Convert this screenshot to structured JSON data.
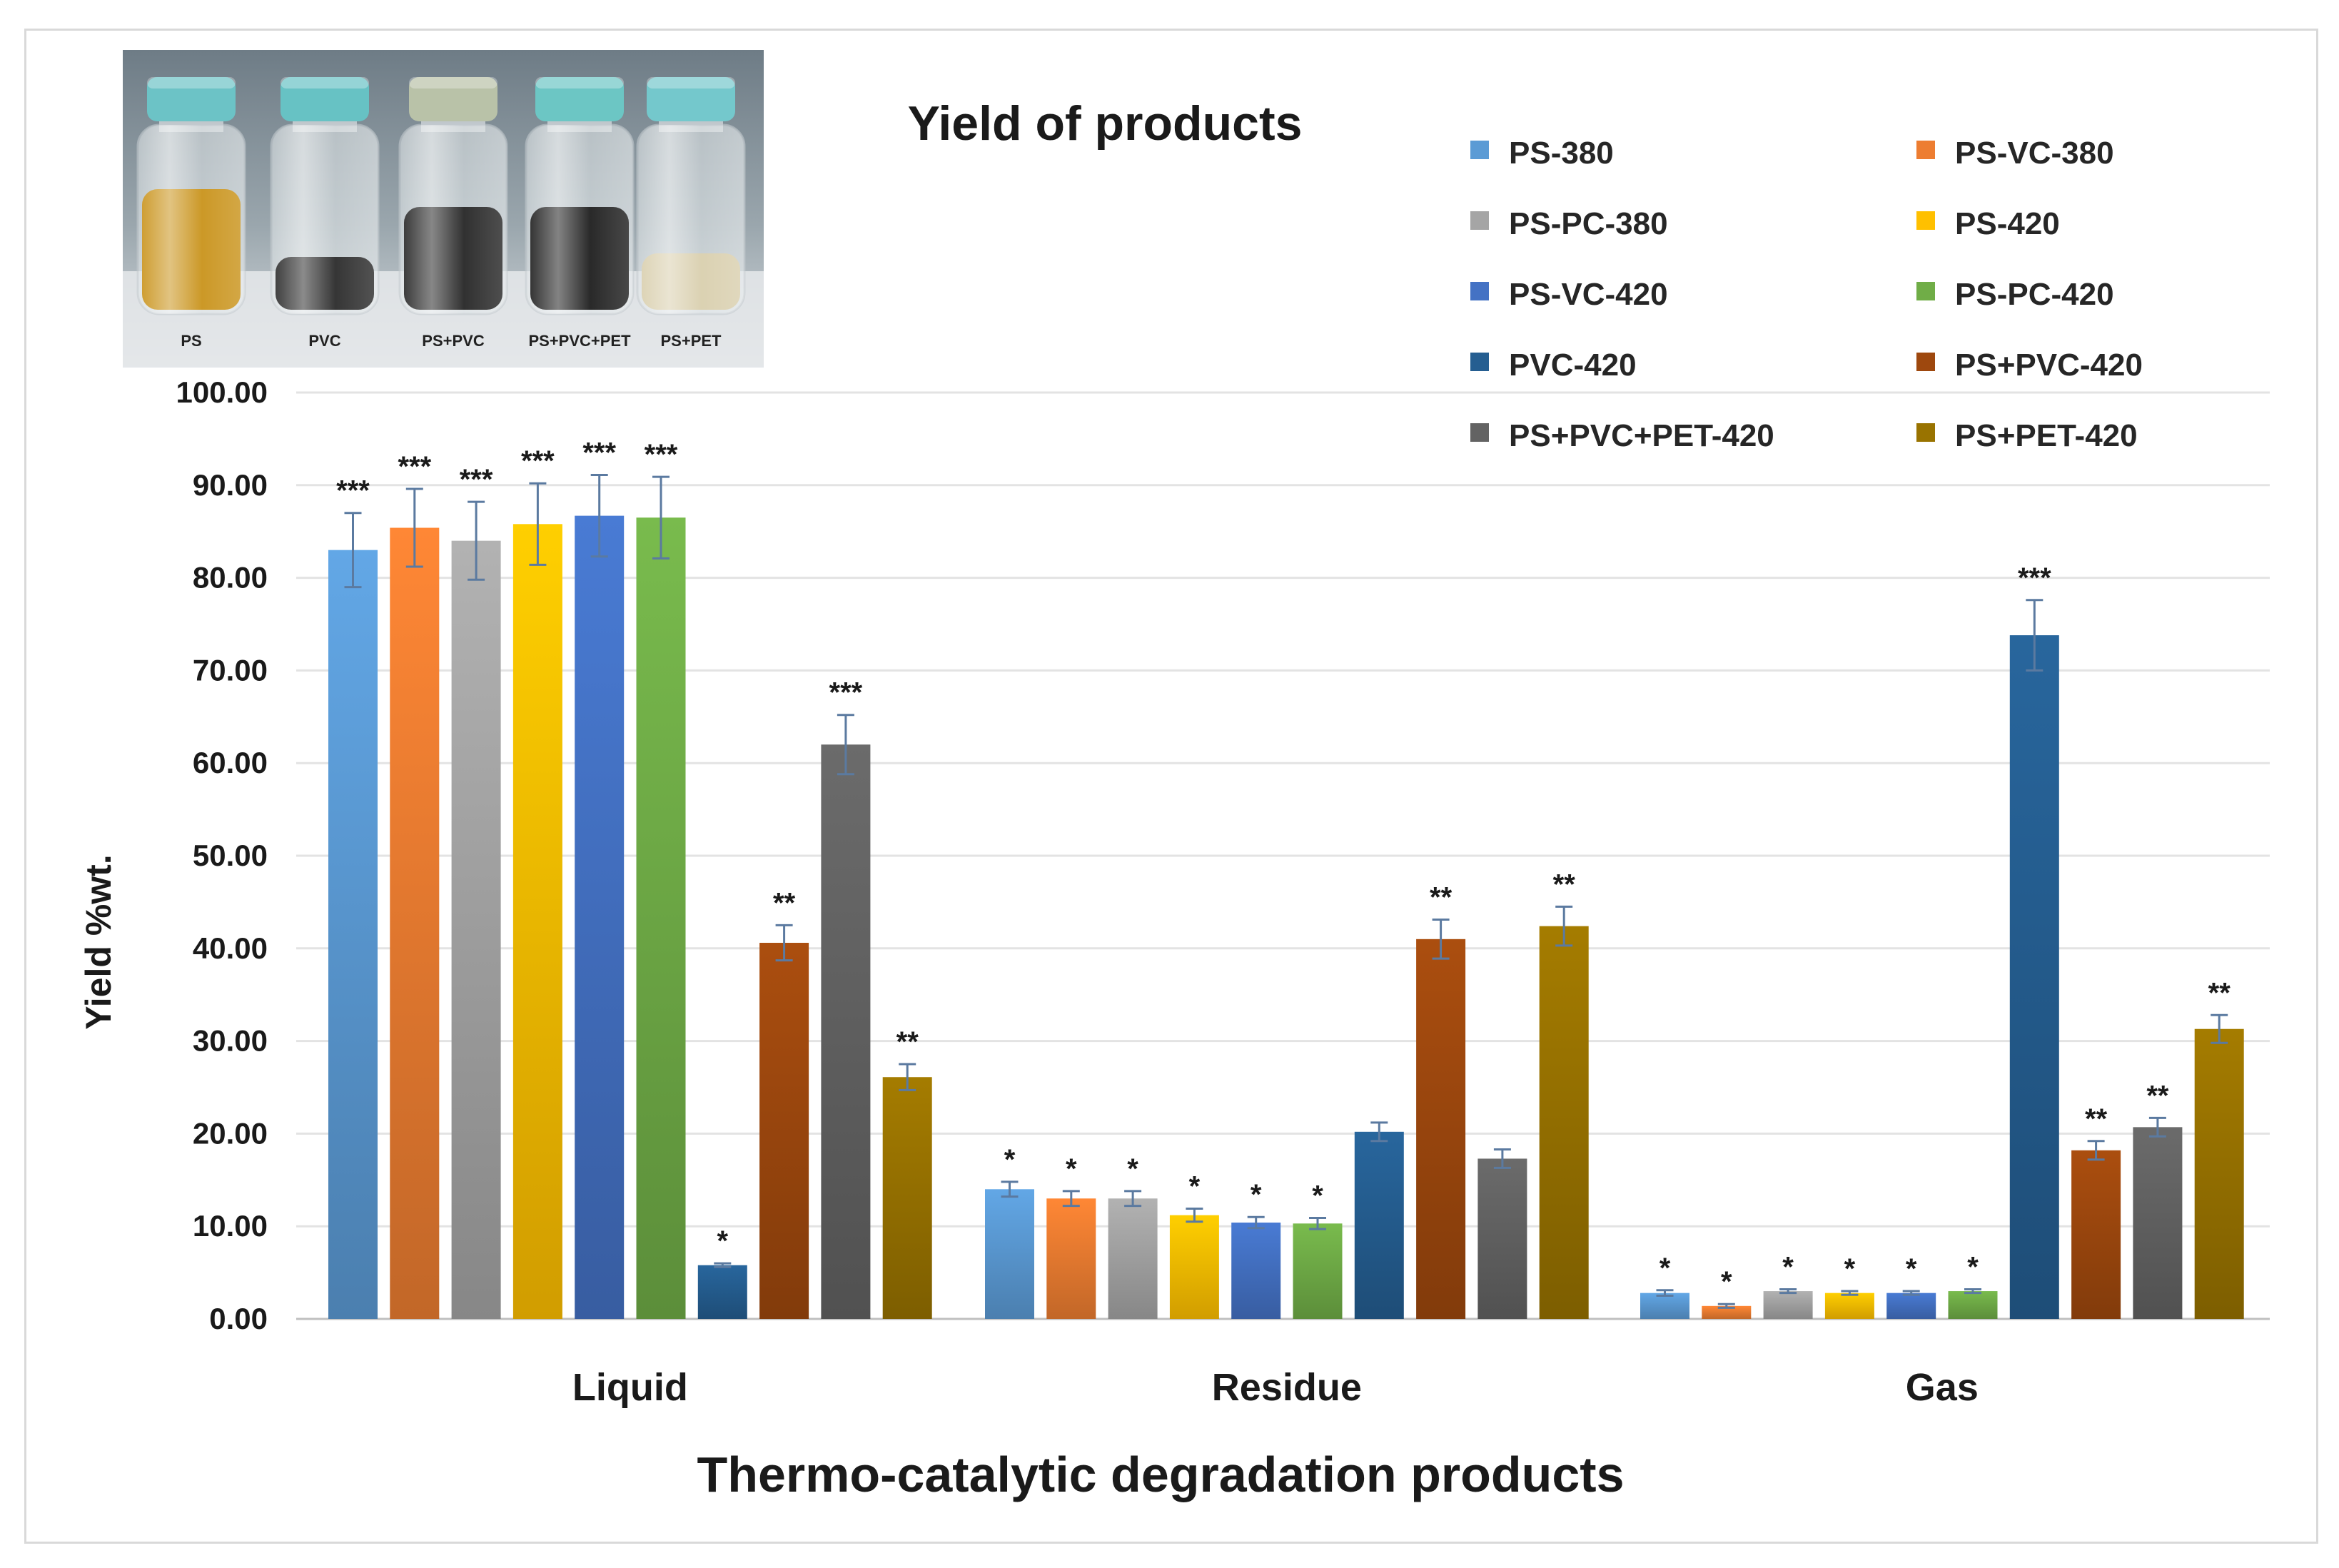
{
  "chart_data": {
    "type": "bar",
    "title": "Yield of products",
    "xlabel": "Thermo-catalytic degradation products",
    "ylabel": "Yield  %wt.",
    "ylim": [
      0,
      100
    ],
    "yticks": [
      "0.00",
      "10.00",
      "20.00",
      "30.00",
      "40.00",
      "50.00",
      "60.00",
      "70.00",
      "80.00",
      "90.00",
      "100.00"
    ],
    "grid": true,
    "legend_position": "top-right",
    "categories": [
      "Liquid",
      "Residue",
      "Gas"
    ],
    "series": [
      {
        "name": "PS-380",
        "color": "#5b9bd5",
        "values": [
          83,
          14,
          2.8
        ],
        "errors": [
          4,
          0.8,
          0.3
        ],
        "significance": [
          "***",
          "*",
          "*"
        ]
      },
      {
        "name": "PS-VC-380",
        "color": "#ed7d31",
        "values": [
          85.4,
          13,
          1.4
        ],
        "errors": [
          4.2,
          0.8,
          0.2
        ],
        "significance": [
          "***",
          "*",
          "*"
        ]
      },
      {
        "name": "PS-PC-380",
        "color": "#a5a5a5",
        "values": [
          84,
          13,
          3
        ],
        "errors": [
          4.2,
          0.8,
          0.2
        ],
        "significance": [
          "***",
          "*",
          "*"
        ]
      },
      {
        "name": "PS-420",
        "color": "#ffc000",
        "values": [
          85.8,
          11.2,
          2.8
        ],
        "errors": [
          4.4,
          0.7,
          0.2
        ],
        "significance": [
          "***",
          "*",
          "*"
        ]
      },
      {
        "name": "PS-VC-420",
        "color": "#4472c4",
        "values": [
          86.7,
          10.4,
          2.8
        ],
        "errors": [
          4.4,
          0.6,
          0.2
        ],
        "significance": [
          "***",
          "*",
          "*"
        ]
      },
      {
        "name": "PS-PC-420",
        "color": "#70ad47",
        "values": [
          86.5,
          10.3,
          3
        ],
        "errors": [
          4.4,
          0.6,
          0.2
        ],
        "significance": [
          "***",
          "*",
          "*"
        ]
      },
      {
        "name": "PVC-420",
        "color": "#255e91",
        "values": [
          5.8,
          20.2,
          73.8
        ],
        "errors": [
          0.2,
          1.0,
          3.8
        ],
        "significance": [
          "*",
          "",
          "***"
        ]
      },
      {
        "name": "PS+PVC-420",
        "color": "#9e480e",
        "values": [
          40.6,
          41,
          18.2
        ],
        "errors": [
          1.9,
          2.1,
          1.0
        ],
        "significance": [
          "**",
          "**",
          "**"
        ]
      },
      {
        "name": "PS+PVC+PET-420",
        "color": "#636363",
        "values": [
          62,
          17.3,
          20.7
        ],
        "errors": [
          3.2,
          1.0,
          1.0
        ],
        "significance": [
          "***",
          "",
          "**"
        ]
      },
      {
        "name": "PS+PET-420",
        "color": "#997300",
        "values": [
          26.1,
          42.4,
          31.3
        ],
        "errors": [
          1.4,
          2.1,
          1.5
        ],
        "significance": [
          "**",
          "**",
          "**"
        ]
      }
    ]
  },
  "inset_photo": {
    "labels": [
      "PS",
      "PVC",
      "PS+PVC",
      "PS+PVC+PET",
      "PS+PET"
    ]
  }
}
